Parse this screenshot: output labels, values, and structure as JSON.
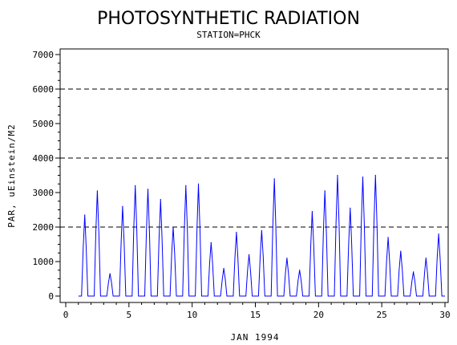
{
  "chart_data": {
    "type": "line",
    "title": "PHOTOSYNTHETIC RADIATION",
    "subtitle": "STATION=PHCK",
    "xlabel": "JAN 1994",
    "ylabel": "PAR, uEinstein/M2",
    "xlim": [
      0,
      30
    ],
    "ylim": [
      0,
      7000
    ],
    "xticks": [
      0,
      5,
      10,
      15,
      20,
      25,
      30
    ],
    "yticks": [
      0,
      1000,
      2000,
      3000,
      4000,
      5000,
      6000,
      7000
    ],
    "reference_lines": [
      2000,
      4000,
      6000
    ],
    "series_color": "#0000ff",
    "daily_peaks": [
      {
        "day": 1.5,
        "value": 2350
      },
      {
        "day": 2.5,
        "value": 3050
      },
      {
        "day": 3.5,
        "value": 650
      },
      {
        "day": 4.5,
        "value": 2600
      },
      {
        "day": 5.5,
        "value": 3200
      },
      {
        "day": 6.5,
        "value": 3100
      },
      {
        "day": 7.5,
        "value": 2800
      },
      {
        "day": 8.5,
        "value": 2000
      },
      {
        "day": 9.5,
        "value": 3200
      },
      {
        "day": 10.5,
        "value": 3250
      },
      {
        "day": 11.5,
        "value": 1550
      },
      {
        "day": 12.5,
        "value": 800
      },
      {
        "day": 13.5,
        "value": 1850
      },
      {
        "day": 14.5,
        "value": 1200
      },
      {
        "day": 15.5,
        "value": 1900
      },
      {
        "day": 16.5,
        "value": 3400
      },
      {
        "day": 17.5,
        "value": 1100
      },
      {
        "day": 18.5,
        "value": 750
      },
      {
        "day": 19.5,
        "value": 2450
      },
      {
        "day": 20.5,
        "value": 3050
      },
      {
        "day": 21.5,
        "value": 3500
      },
      {
        "day": 22.5,
        "value": 2550
      },
      {
        "day": 23.5,
        "value": 3450
      },
      {
        "day": 24.5,
        "value": 3500
      },
      {
        "day": 25.5,
        "value": 1700
      },
      {
        "day": 26.5,
        "value": 1300
      },
      {
        "day": 27.5,
        "value": 700
      },
      {
        "day": 28.5,
        "value": 1100
      },
      {
        "day": 29.5,
        "value": 1800
      }
    ]
  }
}
